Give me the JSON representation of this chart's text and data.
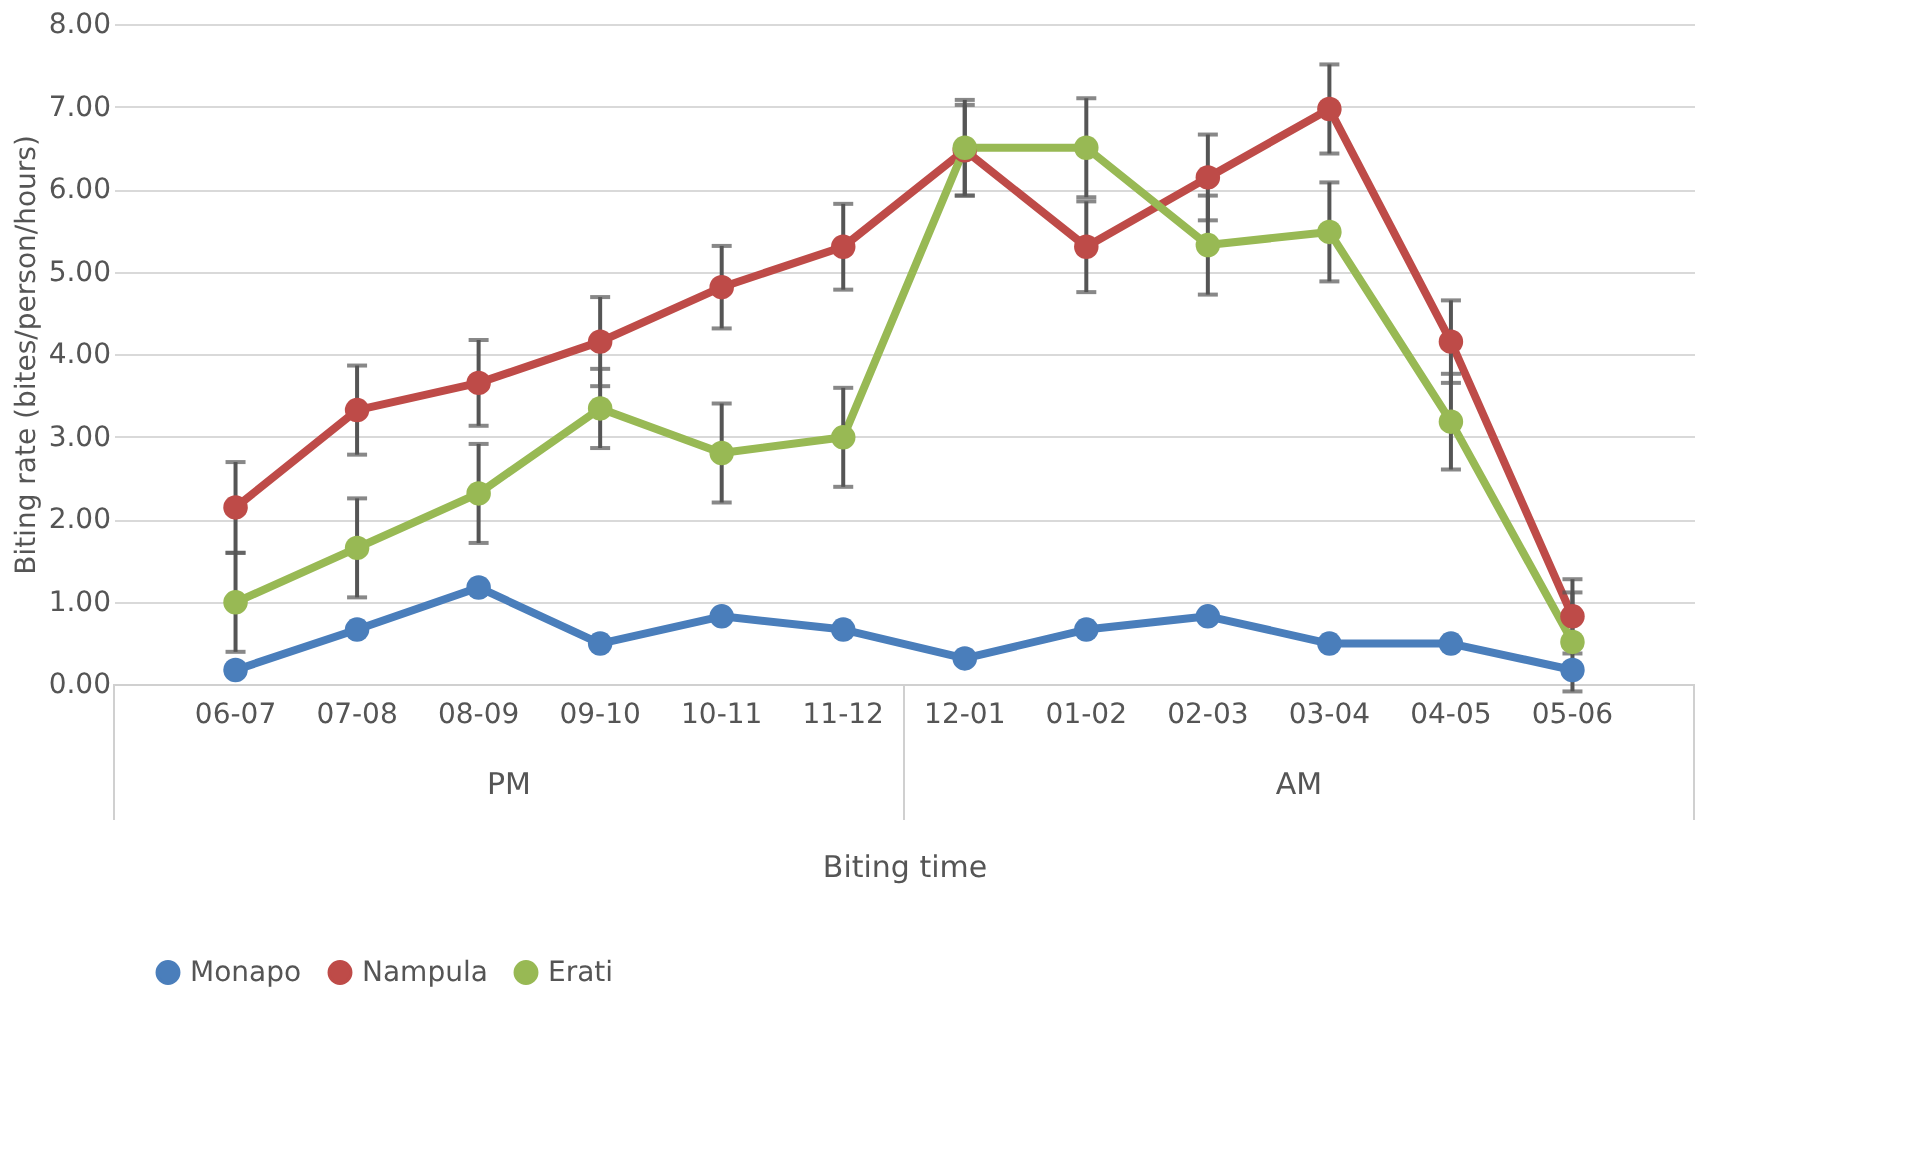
{
  "chart_data": {
    "type": "line",
    "xlabel": "Biting time",
    "ylabel": "Biting rate (bites/person/hours)",
    "categories": [
      "06-07",
      "07-08",
      "08-09",
      "09-10",
      "10-11",
      "11-12",
      "12-01",
      "01-02",
      "02-03",
      "03-04",
      "04-05",
      "05-06"
    ],
    "series": [
      {
        "name": "Monapo",
        "color": "#4a7ebb",
        "values": [
          0.17,
          0.66,
          1.17,
          0.49,
          0.82,
          0.66,
          0.31,
          0.66,
          0.82,
          0.49,
          0.49,
          0.17
        ]
      },
      {
        "name": "Nampula",
        "color": "#be4b48",
        "values": [
          2.14,
          3.32,
          3.65,
          4.15,
          4.81,
          5.3,
          6.47,
          5.3,
          6.14,
          6.97,
          4.15,
          0.82
        ],
        "errors": [
          0.55,
          0.54,
          0.52,
          0.54,
          0.5,
          0.52,
          0.55,
          0.55,
          0.52,
          0.54,
          0.5,
          0.45
        ]
      },
      {
        "name": "Erati",
        "color": "#98b954",
        "values": [
          0.99,
          1.65,
          2.31,
          3.34,
          2.8,
          2.99,
          6.5,
          6.5,
          5.32,
          5.48,
          3.18,
          0.51
        ],
        "errors": [
          0.6,
          0.6,
          0.6,
          0.48,
          0.6,
          0.6,
          0.58,
          0.6,
          0.6,
          0.6,
          0.58,
          0.6
        ]
      }
    ],
    "ylim": [
      0,
      8
    ],
    "yticks": [
      {
        "value": 0,
        "label": "0.00"
      },
      {
        "value": 1,
        "label": "1.00"
      },
      {
        "value": 2,
        "label": "2.00"
      },
      {
        "value": 3,
        "label": "3.00"
      },
      {
        "value": 4,
        "label": "4.00"
      },
      {
        "value": 5,
        "label": "5.00"
      },
      {
        "value": 6,
        "label": "6.00"
      },
      {
        "value": 7,
        "label": "7.00"
      },
      {
        "value": 8,
        "label": "8.00"
      }
    ],
    "annotations": [
      "PM",
      "AM"
    ],
    "grid": "y",
    "legend": "bottom",
    "marker": "circle",
    "line_style": "solid"
  }
}
